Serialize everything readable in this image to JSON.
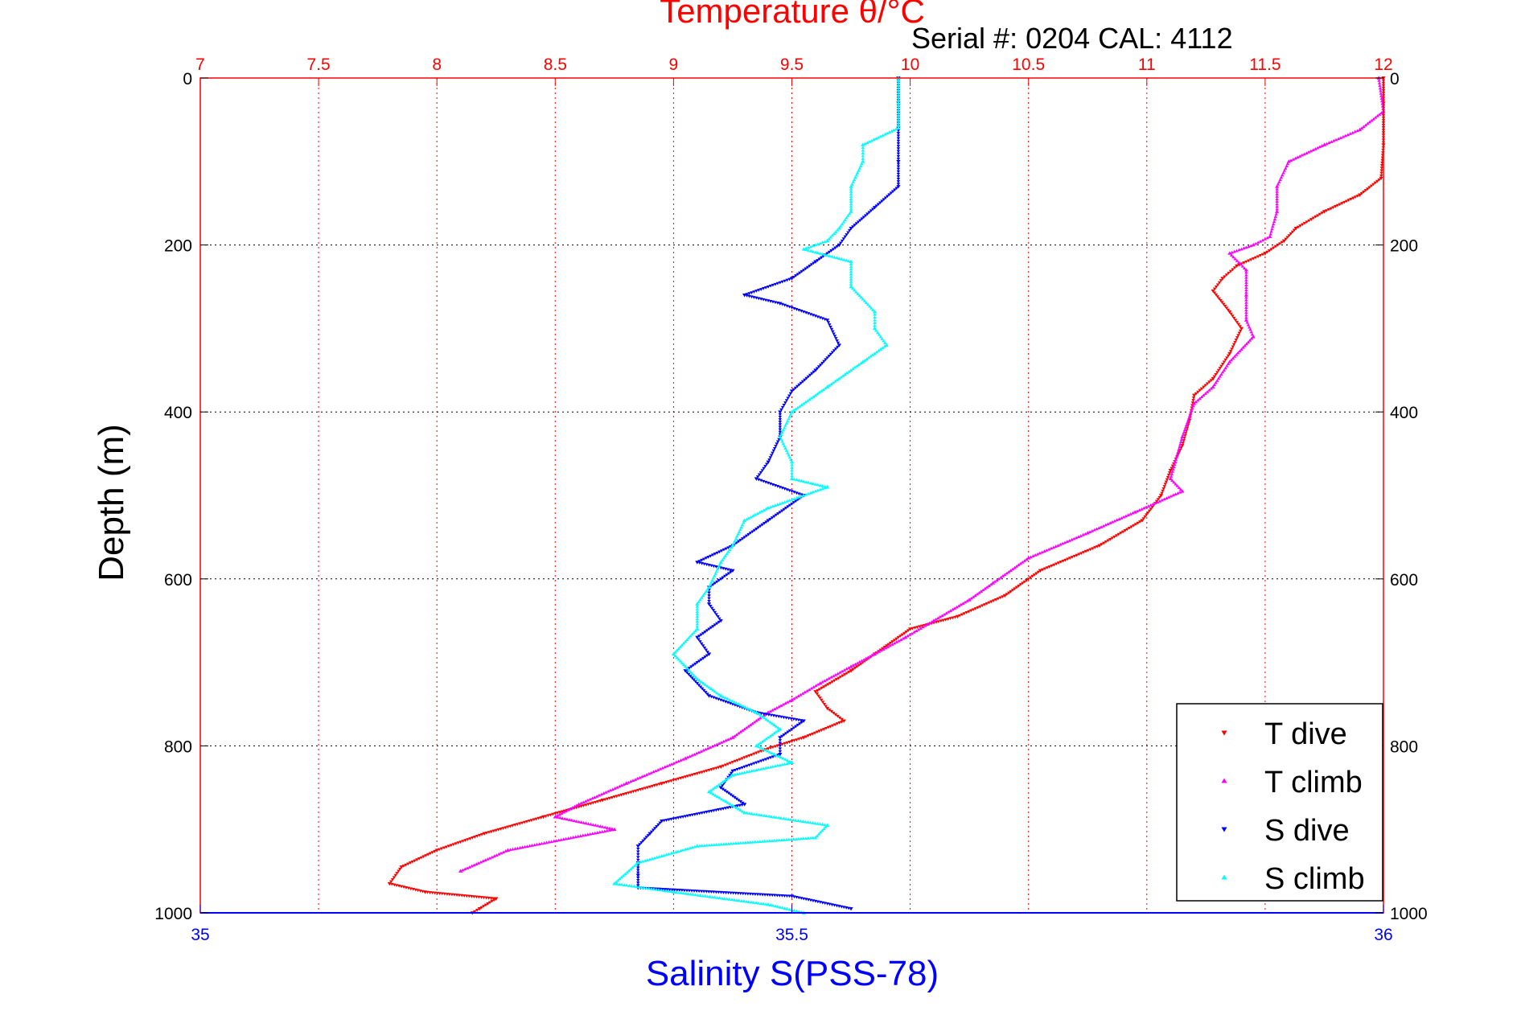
{
  "chart_data": {
    "type": "scatter",
    "title": "Temperature θ/°C",
    "subtitle": "Serial #: 0204  CAL: 4112",
    "xlabel": "Salinity S(PSS-78)",
    "ylabel": "Depth (m)",
    "x_top": {
      "label": "Temperature θ/°C",
      "range": [
        7,
        12
      ],
      "ticks": [
        "7",
        "7.5",
        "8",
        "8.5",
        "9",
        "9.5",
        "10",
        "10.5",
        "11",
        "11.5",
        "12"
      ],
      "color": "#ff0000"
    },
    "x_bottom": {
      "label": "Salinity S(PSS-78)",
      "range": [
        35,
        36
      ],
      "ticks": [
        "35",
        "35.5",
        "36"
      ],
      "color": "#0000ff"
    },
    "y": {
      "label": "Depth (m)",
      "range": [
        0,
        1000
      ],
      "inverted": true,
      "ticks": [
        "0",
        "200",
        "400",
        "600",
        "800",
        "1000"
      ]
    },
    "grid": true,
    "legend_position": "bottom-right",
    "series": [
      {
        "name": "T dive",
        "axis": "temperature",
        "color": "#ff0000",
        "marker": "triangle-down",
        "points": [
          [
            12.0,
            0
          ],
          [
            12.0,
            30
          ],
          [
            12.0,
            80
          ],
          [
            11.99,
            120
          ],
          [
            11.9,
            140
          ],
          [
            11.75,
            160
          ],
          [
            11.63,
            180
          ],
          [
            11.58,
            195
          ],
          [
            11.5,
            210
          ],
          [
            11.38,
            225
          ],
          [
            11.32,
            240
          ],
          [
            11.28,
            255
          ],
          [
            11.35,
            280
          ],
          [
            11.4,
            300
          ],
          [
            11.35,
            330
          ],
          [
            11.28,
            360
          ],
          [
            11.2,
            380
          ],
          [
            11.18,
            410
          ],
          [
            11.15,
            440
          ],
          [
            11.1,
            470
          ],
          [
            11.06,
            500
          ],
          [
            10.98,
            530
          ],
          [
            10.8,
            560
          ],
          [
            10.55,
            590
          ],
          [
            10.4,
            620
          ],
          [
            10.2,
            645
          ],
          [
            10.0,
            660
          ],
          [
            9.85,
            690
          ],
          [
            9.75,
            710
          ],
          [
            9.6,
            735
          ],
          [
            9.65,
            755
          ],
          [
            9.72,
            770
          ],
          [
            9.55,
            790
          ],
          [
            9.38,
            805
          ],
          [
            9.2,
            825
          ],
          [
            8.95,
            845
          ],
          [
            8.7,
            865
          ],
          [
            8.45,
            885
          ],
          [
            8.2,
            905
          ],
          [
            8.0,
            925
          ],
          [
            7.85,
            945
          ],
          [
            7.8,
            965
          ],
          [
            7.95,
            975
          ],
          [
            8.25,
            983
          ],
          [
            8.18,
            995
          ],
          [
            8.15,
            1000
          ]
        ]
      },
      {
        "name": "T climb",
        "axis": "temperature",
        "color": "#ff00ff",
        "marker": "triangle-up",
        "points": [
          [
            11.98,
            0
          ],
          [
            12.0,
            40
          ],
          [
            11.9,
            62
          ],
          [
            11.75,
            80
          ],
          [
            11.6,
            100
          ],
          [
            11.55,
            130
          ],
          [
            11.55,
            160
          ],
          [
            11.52,
            190
          ],
          [
            11.45,
            200
          ],
          [
            11.35,
            210
          ],
          [
            11.42,
            230
          ],
          [
            11.42,
            260
          ],
          [
            11.42,
            290
          ],
          [
            11.45,
            310
          ],
          [
            11.35,
            340
          ],
          [
            11.28,
            370
          ],
          [
            11.2,
            390
          ],
          [
            11.15,
            430
          ],
          [
            11.12,
            460
          ],
          [
            11.1,
            480
          ],
          [
            11.15,
            495
          ],
          [
            10.95,
            520
          ],
          [
            10.75,
            545
          ],
          [
            10.5,
            575
          ],
          [
            10.35,
            605
          ],
          [
            10.25,
            625
          ],
          [
            10.1,
            650
          ],
          [
            9.98,
            670
          ],
          [
            9.85,
            690
          ],
          [
            9.75,
            705
          ],
          [
            9.62,
            725
          ],
          [
            9.5,
            745
          ],
          [
            9.4,
            760
          ],
          [
            9.25,
            790
          ],
          [
            9.05,
            815
          ],
          [
            8.8,
            845
          ],
          [
            8.6,
            870
          ],
          [
            8.5,
            885
          ],
          [
            8.75,
            900
          ],
          [
            8.3,
            925
          ],
          [
            8.1,
            950
          ]
        ]
      },
      {
        "name": "S dive",
        "axis": "salinity",
        "color": "#0000ff",
        "marker": "triangle-down",
        "points": [
          [
            35.59,
            0
          ],
          [
            35.59,
            30
          ],
          [
            35.59,
            60
          ],
          [
            35.59,
            100
          ],
          [
            35.59,
            130
          ],
          [
            35.57,
            155
          ],
          [
            35.55,
            180
          ],
          [
            35.54,
            200
          ],
          [
            35.52,
            220
          ],
          [
            35.5,
            240
          ],
          [
            35.46,
            260
          ],
          [
            35.49,
            270
          ],
          [
            35.53,
            290
          ],
          [
            35.54,
            320
          ],
          [
            35.52,
            350
          ],
          [
            35.5,
            375
          ],
          [
            35.49,
            400
          ],
          [
            35.49,
            430
          ],
          [
            35.48,
            460
          ],
          [
            35.47,
            480
          ],
          [
            35.51,
            500
          ],
          [
            35.48,
            530
          ],
          [
            35.45,
            560
          ],
          [
            35.42,
            580
          ],
          [
            35.45,
            590
          ],
          [
            35.43,
            610
          ],
          [
            35.43,
            630
          ],
          [
            35.44,
            650
          ],
          [
            35.42,
            670
          ],
          [
            35.43,
            690
          ],
          [
            35.41,
            710
          ],
          [
            35.43,
            740
          ],
          [
            35.47,
            760
          ],
          [
            35.51,
            770
          ],
          [
            35.49,
            790
          ],
          [
            35.49,
            810
          ],
          [
            35.45,
            830
          ],
          [
            35.44,
            850
          ],
          [
            35.46,
            870
          ],
          [
            35.39,
            890
          ],
          [
            35.38,
            905
          ],
          [
            35.37,
            920
          ],
          [
            35.37,
            940
          ],
          [
            35.37,
            955
          ],
          [
            35.37,
            970
          ],
          [
            35.5,
            980
          ],
          [
            35.55,
            995
          ]
        ]
      },
      {
        "name": "S climb",
        "axis": "salinity",
        "color": "#00ffff",
        "marker": "triangle-up",
        "points": [
          [
            35.59,
            0
          ],
          [
            35.59,
            30
          ],
          [
            35.59,
            60
          ],
          [
            35.56,
            80
          ],
          [
            35.56,
            100
          ],
          [
            35.55,
            130
          ],
          [
            35.55,
            160
          ],
          [
            35.54,
            180
          ],
          [
            35.53,
            195
          ],
          [
            35.51,
            205
          ],
          [
            35.55,
            220
          ],
          [
            35.55,
            250
          ],
          [
            35.57,
            280
          ],
          [
            35.57,
            300
          ],
          [
            35.58,
            320
          ],
          [
            35.56,
            340
          ],
          [
            35.53,
            370
          ],
          [
            35.5,
            400
          ],
          [
            35.49,
            430
          ],
          [
            35.5,
            460
          ],
          [
            35.5,
            480
          ],
          [
            35.53,
            490
          ],
          [
            35.48,
            515
          ],
          [
            35.46,
            530
          ],
          [
            35.45,
            560
          ],
          [
            35.44,
            580
          ],
          [
            35.43,
            610
          ],
          [
            35.42,
            630
          ],
          [
            35.42,
            660
          ],
          [
            35.4,
            690
          ],
          [
            35.42,
            720
          ],
          [
            35.44,
            740
          ],
          [
            35.47,
            760
          ],
          [
            35.49,
            780
          ],
          [
            35.47,
            800
          ],
          [
            35.5,
            820
          ],
          [
            35.45,
            835
          ],
          [
            35.43,
            855
          ],
          [
            35.46,
            880
          ],
          [
            35.53,
            895
          ],
          [
            35.52,
            910
          ],
          [
            35.42,
            920
          ],
          [
            35.37,
            940
          ],
          [
            35.35,
            965
          ],
          [
            35.4,
            975
          ],
          [
            35.48,
            990
          ],
          [
            35.51,
            1000
          ]
        ]
      }
    ]
  }
}
